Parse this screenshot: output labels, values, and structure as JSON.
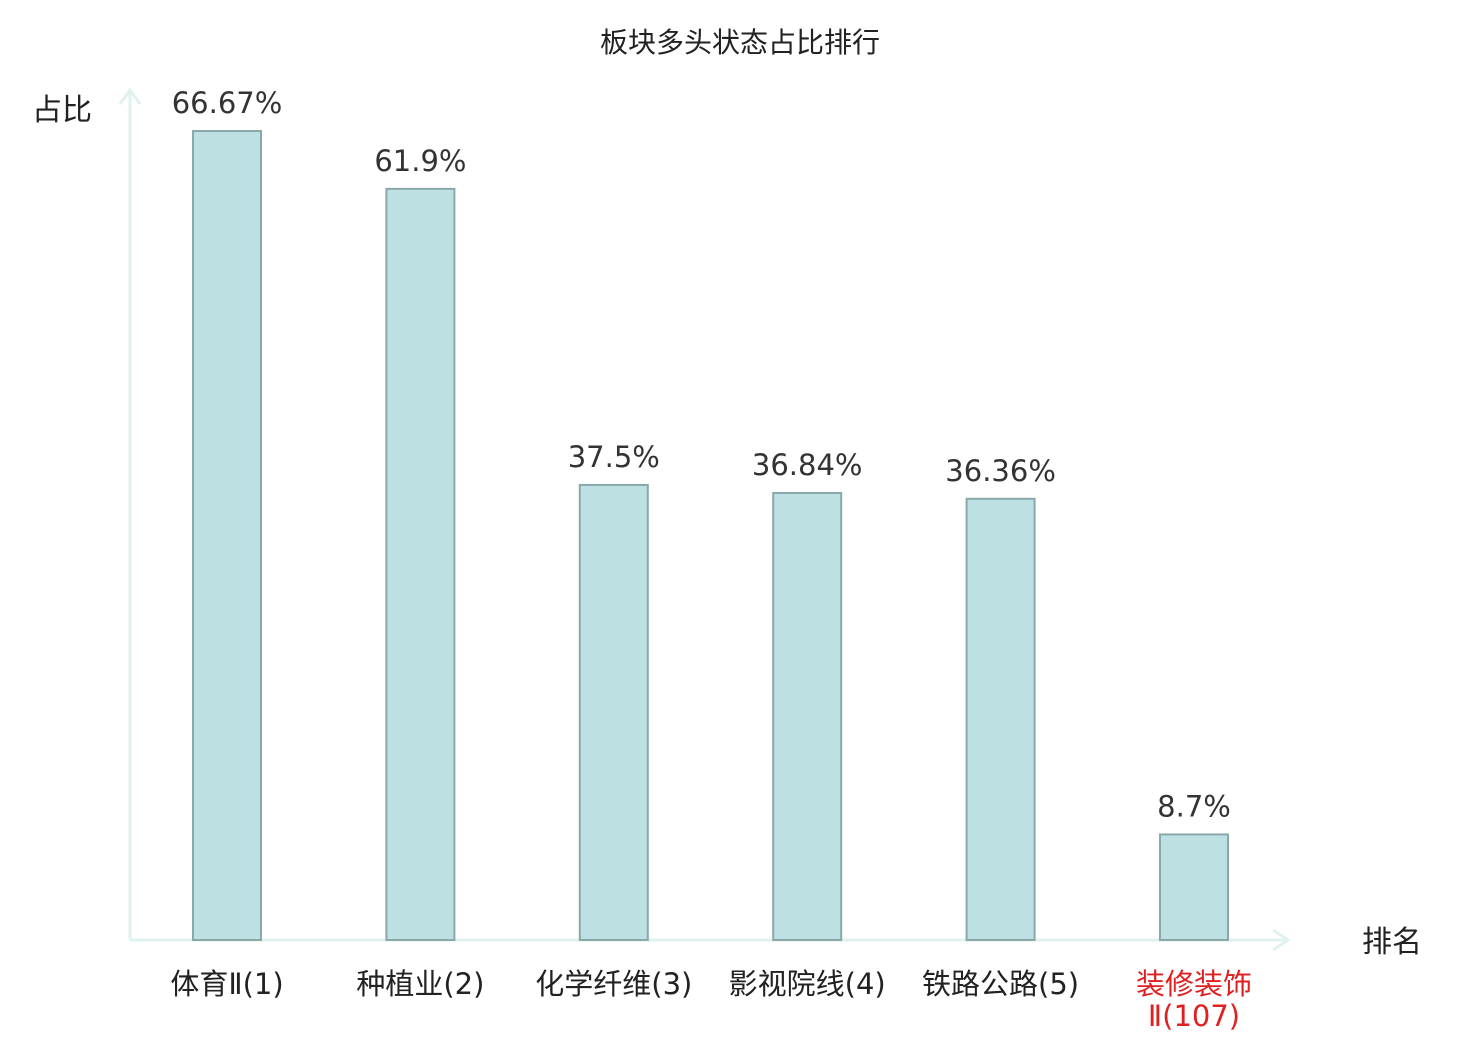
{
  "chart_data": {
    "type": "bar",
    "title": "板块多头状态占比排行",
    "ylabel": "占比",
    "xlabel": "排名",
    "ylim": [
      0,
      70
    ],
    "grid": false,
    "categories": [
      {
        "name": "体育Ⅱ",
        "rank": "(1)"
      },
      {
        "name": "种植业",
        "rank": "(2)"
      },
      {
        "name": "化学纤维",
        "rank": "(3)"
      },
      {
        "name": "影视院线",
        "rank": "(4)"
      },
      {
        "name": "铁路公路",
        "rank": "(5)"
      },
      {
        "name": "装修装饰",
        "rank": "Ⅱ(107)",
        "highlight": true
      }
    ],
    "values": [
      66.67,
      61.9,
      37.5,
      36.84,
      36.36,
      8.7
    ],
    "value_labels": [
      "66.67%",
      "61.9%",
      "37.5%",
      "36.84%",
      "36.36%",
      "8.7%"
    ],
    "colors": {
      "bar_fill": "#bde0e3",
      "bar_stroke": "#8aa8aa",
      "axis": "#dff2ef",
      "highlight_text": "#e02020",
      "normal_text": "#222222"
    }
  }
}
